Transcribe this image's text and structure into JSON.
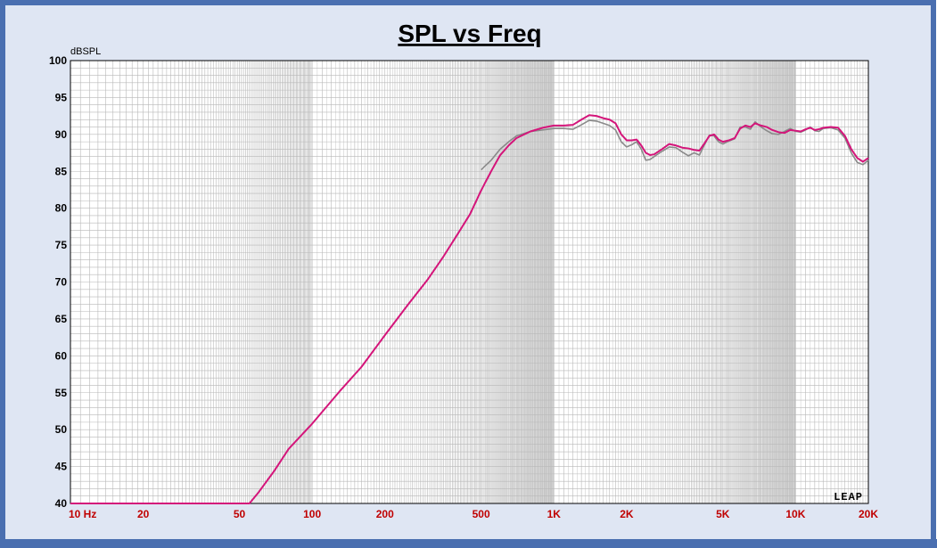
{
  "chart_data": {
    "type": "line",
    "title": "SPL vs Freq",
    "ylabel": "dBSPL",
    "xlabel": "",
    "x_scale": "log",
    "xlim": [
      10,
      20000
    ],
    "ylim": [
      40,
      100
    ],
    "grid": true,
    "logo": "LEAP",
    "colors": {
      "frame": "#4a6fb0",
      "background": "#dfe6f3",
      "plot_bg": "#ffffff",
      "grid": "#b8b8b8",
      "axis_text_x": "#c00000",
      "axis_text_y": "#000000",
      "series_primary": "#d4157a",
      "series_secondary": "#8a8a8a"
    },
    "x_ticks": [
      {
        "value": 10,
        "label": "10 Hz"
      },
      {
        "value": 20,
        "label": "20"
      },
      {
        "value": 50,
        "label": "50"
      },
      {
        "value": 100,
        "label": "100"
      },
      {
        "value": 200,
        "label": "200"
      },
      {
        "value": 500,
        "label": "500"
      },
      {
        "value": 1000,
        "label": "1K"
      },
      {
        "value": 2000,
        "label": "2K"
      },
      {
        "value": 5000,
        "label": "5K"
      },
      {
        "value": 10000,
        "label": "10K"
      },
      {
        "value": 20000,
        "label": "20K"
      }
    ],
    "y_ticks": [
      {
        "value": 100,
        "label": "100"
      },
      {
        "value": 95,
        "label": "95"
      },
      {
        "value": 90,
        "label": "90"
      },
      {
        "value": 85,
        "label": "85"
      },
      {
        "value": 80,
        "label": "80"
      },
      {
        "value": 75,
        "label": "75"
      },
      {
        "value": 70,
        "label": "70"
      },
      {
        "value": 65,
        "label": "65"
      },
      {
        "value": 60,
        "label": "60"
      },
      {
        "value": 55,
        "label": "55"
      },
      {
        "value": 50,
        "label": "50"
      },
      {
        "value": 45,
        "label": "45"
      },
      {
        "value": 40,
        "label": "40"
      }
    ],
    "series": [
      {
        "points": [
          [
            10,
            40
          ],
          [
            50,
            40
          ],
          [
            55,
            40
          ],
          [
            60,
            41.5
          ],
          [
            70,
            44.5
          ],
          [
            80,
            47.4
          ],
          [
            100,
            50.8
          ],
          [
            130,
            55.2
          ],
          [
            160,
            58.5
          ],
          [
            200,
            62.8
          ],
          [
            250,
            67.0
          ],
          [
            300,
            70.3
          ],
          [
            350,
            73.5
          ],
          [
            400,
            76.5
          ],
          [
            450,
            79.2
          ],
          [
            500,
            82.4
          ],
          [
            550,
            85.0
          ],
          [
            600,
            87.2
          ],
          [
            650,
            88.5
          ],
          [
            700,
            89.5
          ],
          [
            800,
            90.4
          ],
          [
            900,
            90.9
          ],
          [
            1000,
            91.2
          ],
          [
            1100,
            91.2
          ],
          [
            1200,
            91.3
          ],
          [
            1300,
            92.0
          ],
          [
            1400,
            92.6
          ],
          [
            1500,
            92.5
          ],
          [
            1600,
            92.2
          ],
          [
            1700,
            92.0
          ],
          [
            1800,
            91.5
          ],
          [
            1900,
            90.0
          ],
          [
            2000,
            89.2
          ],
          [
            2100,
            89.2
          ],
          [
            2200,
            89.3
          ],
          [
            2300,
            88.5
          ],
          [
            2400,
            87.5
          ],
          [
            2500,
            87.2
          ],
          [
            2600,
            87.3
          ],
          [
            2800,
            88.0
          ],
          [
            3000,
            88.7
          ],
          [
            3200,
            88.5
          ],
          [
            3400,
            88.2
          ],
          [
            3600,
            88.1
          ],
          [
            3800,
            87.9
          ],
          [
            4000,
            87.8
          ],
          [
            4200,
            88.8
          ],
          [
            4400,
            89.8
          ],
          [
            4600,
            90.0
          ],
          [
            4800,
            89.3
          ],
          [
            5000,
            89.0
          ],
          [
            5300,
            89.2
          ],
          [
            5600,
            89.5
          ],
          [
            5900,
            90.8
          ],
          [
            6200,
            91.2
          ],
          [
            6500,
            91.0
          ],
          [
            6800,
            91.5
          ],
          [
            7200,
            91.2
          ],
          [
            7600,
            91.0
          ],
          [
            8000,
            90.6
          ],
          [
            8500,
            90.3
          ],
          [
            9000,
            90.2
          ],
          [
            9500,
            90.6
          ],
          [
            10000,
            90.5
          ],
          [
            10500,
            90.4
          ],
          [
            11000,
            90.7
          ],
          [
            11500,
            90.9
          ],
          [
            12000,
            90.6
          ],
          [
            12500,
            90.7
          ],
          [
            13000,
            90.9
          ],
          [
            14000,
            91.0
          ],
          [
            15000,
            90.9
          ],
          [
            16000,
            89.8
          ],
          [
            17000,
            88.0
          ],
          [
            18000,
            86.8
          ],
          [
            19000,
            86.3
          ],
          [
            20000,
            86.8
          ]
        ]
      },
      {
        "points": [
          [
            500,
            85.2
          ],
          [
            550,
            86.5
          ],
          [
            600,
            88.0
          ],
          [
            650,
            89.0
          ],
          [
            700,
            89.8
          ],
          [
            800,
            90.4
          ],
          [
            900,
            90.6
          ],
          [
            1000,
            90.8
          ],
          [
            1100,
            90.8
          ],
          [
            1200,
            90.7
          ],
          [
            1300,
            91.3
          ],
          [
            1400,
            91.9
          ],
          [
            1500,
            91.8
          ],
          [
            1600,
            91.5
          ],
          [
            1700,
            91.2
          ],
          [
            1800,
            90.6
          ],
          [
            1900,
            89.0
          ],
          [
            2000,
            88.3
          ],
          [
            2100,
            88.6
          ],
          [
            2200,
            89.0
          ],
          [
            2300,
            88.0
          ],
          [
            2400,
            86.5
          ],
          [
            2500,
            86.6
          ],
          [
            2600,
            87.0
          ],
          [
            2800,
            87.7
          ],
          [
            3000,
            88.3
          ],
          [
            3200,
            88.2
          ],
          [
            3400,
            87.6
          ],
          [
            3600,
            87.1
          ],
          [
            3800,
            87.5
          ],
          [
            4000,
            87.2
          ],
          [
            4200,
            88.6
          ],
          [
            4400,
            89.9
          ],
          [
            4600,
            89.8
          ],
          [
            4800,
            89.0
          ],
          [
            5000,
            88.7
          ],
          [
            5300,
            89.1
          ],
          [
            5600,
            89.4
          ],
          [
            5900,
            91.0
          ],
          [
            6200,
            91.0
          ],
          [
            6500,
            90.7
          ],
          [
            6800,
            91.7
          ],
          [
            7200,
            91.0
          ],
          [
            7600,
            90.5
          ],
          [
            8000,
            90.1
          ],
          [
            8500,
            90.0
          ],
          [
            9000,
            90.4
          ],
          [
            9500,
            90.8
          ],
          [
            10000,
            90.4
          ],
          [
            10500,
            90.3
          ],
          [
            11000,
            90.6
          ],
          [
            11500,
            91.0
          ],
          [
            12000,
            90.5
          ],
          [
            12500,
            90.4
          ],
          [
            13000,
            90.8
          ],
          [
            14000,
            90.9
          ],
          [
            15000,
            90.6
          ],
          [
            16000,
            89.5
          ],
          [
            17000,
            87.5
          ],
          [
            18000,
            86.2
          ],
          [
            19000,
            85.9
          ],
          [
            20000,
            86.5
          ]
        ]
      }
    ]
  }
}
